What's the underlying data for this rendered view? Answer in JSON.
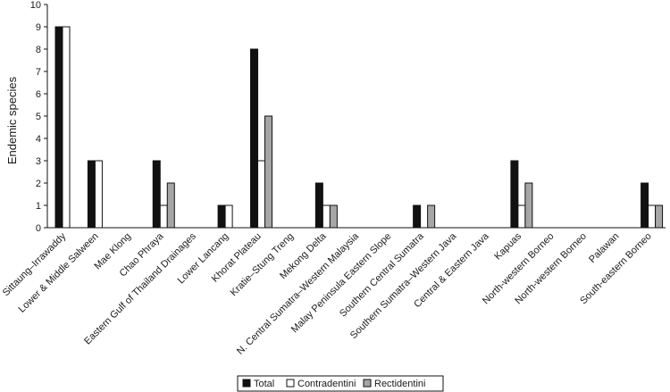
{
  "chart_data": {
    "type": "bar",
    "ylabel": "Endemic species",
    "xlabel": "",
    "ylim": [
      0,
      10
    ],
    "yticks": [
      0,
      1,
      2,
      3,
      4,
      5,
      6,
      7,
      8,
      9,
      10
    ],
    "grid": false,
    "legend_position": "bottom-right",
    "categories": [
      "Sittaung–Irrawaddy",
      "Lower & Middle Salween",
      "Mae Klong",
      "Chao Phraya",
      "Eastern Gulf of Thailand Drainages",
      "Lower Lancang",
      "Khorat Plateau",
      "Kratie–Stung Treng",
      "Mekong Delta",
      "N. Central Sumatra–Western Malaysia",
      "Malay Peninsula Eastern Slope",
      "Southern Central Sumatra",
      "Southern Sumatra–Western Java",
      "Central & Eastern Java",
      "Kapuas",
      "North-western Borneo",
      "North-western Borneo",
      "Palawan",
      "South-eastern Borneo"
    ],
    "series": [
      {
        "name": "Total",
        "color": "#111111",
        "stroke": "#111111",
        "values": [
          9,
          3,
          0,
          3,
          0,
          1,
          8,
          0,
          2,
          0,
          0,
          1,
          0,
          0,
          3,
          0,
          0,
          0,
          2
        ]
      },
      {
        "name": "Contradentini",
        "color": "#ffffff",
        "stroke": "#111111",
        "values": [
          9,
          3,
          0,
          1,
          0,
          1,
          3,
          0,
          1,
          0,
          0,
          0,
          0,
          0,
          1,
          0,
          0,
          0,
          1
        ]
      },
      {
        "name": "Rectidentini",
        "color": "#a6a6a6",
        "stroke": "#111111",
        "values": [
          0,
          0,
          0,
          2,
          0,
          0,
          5,
          0,
          1,
          0,
          0,
          1,
          0,
          0,
          2,
          0,
          0,
          0,
          1
        ]
      }
    ]
  }
}
